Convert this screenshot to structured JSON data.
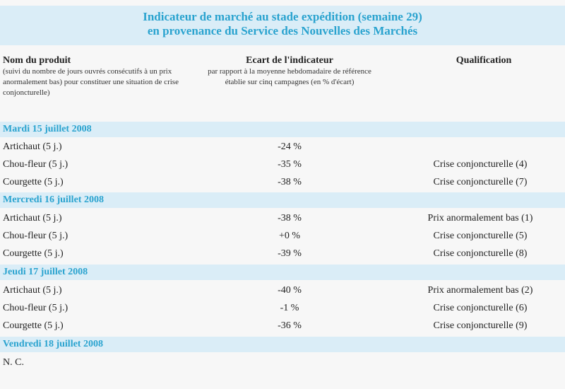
{
  "title": {
    "line1": "Indicateur de marché au stade expédition (semaine 29)",
    "line2": "en provenance du Service des Nouvelles des Marchés"
  },
  "header": {
    "col1_main": "Nom du produit",
    "col1_sub": "(suivi du nombre de jours ouvrés consécutifs à un prix anormalement bas) pour constituer une situation de crise conjoncturelle)",
    "col2_main": "Ecart de l'indicateur",
    "col2_sub": "par rapport à la moyenne hebdomadaire de référence établie sur cinq campagnes (en % d'écart)",
    "col3_main": "Qualification"
  },
  "sections": [
    {
      "date": "Mardi 15 juillet 2008",
      "rows": [
        {
          "product": "Artichaut (5 j.)",
          "ecart": "-24 %",
          "qualification": ""
        },
        {
          "product": "Chou-fleur (5 j.)",
          "ecart": "-35 %",
          "qualification": "Crise conjoncturelle (4)"
        },
        {
          "product": "Courgette (5 j.)",
          "ecart": "-38 %",
          "qualification": "Crise conjoncturelle (7)"
        }
      ]
    },
    {
      "date": "Mercredi 16 juillet 2008",
      "rows": [
        {
          "product": "Artichaut (5 j.)",
          "ecart": "-38 %",
          "qualification": "Prix anormalement bas (1)"
        },
        {
          "product": "Chou-fleur (5 j.)",
          "ecart": "+0 %",
          "qualification": "Crise conjoncturelle (5)"
        },
        {
          "product": "Courgette (5 j.)",
          "ecart": "-39 %",
          "qualification": "Crise conjoncturelle (8)"
        }
      ]
    },
    {
      "date": "Jeudi 17 juillet 2008",
      "rows": [
        {
          "product": "Artichaut (5 j.)",
          "ecart": "-40 %",
          "qualification": "Prix anormalement bas (2)"
        },
        {
          "product": "Chou-fleur (5 j.)",
          "ecart": "-1 %",
          "qualification": "Crise conjoncturelle (6)"
        },
        {
          "product": "Courgette (5 j.)",
          "ecart": "-36 %",
          "qualification": "Crise conjoncturelle (9)"
        }
      ]
    },
    {
      "date": "Vendredi 18 juillet 2008",
      "rows": [
        {
          "product": "N. C.",
          "ecart": "",
          "qualification": ""
        }
      ]
    }
  ]
}
